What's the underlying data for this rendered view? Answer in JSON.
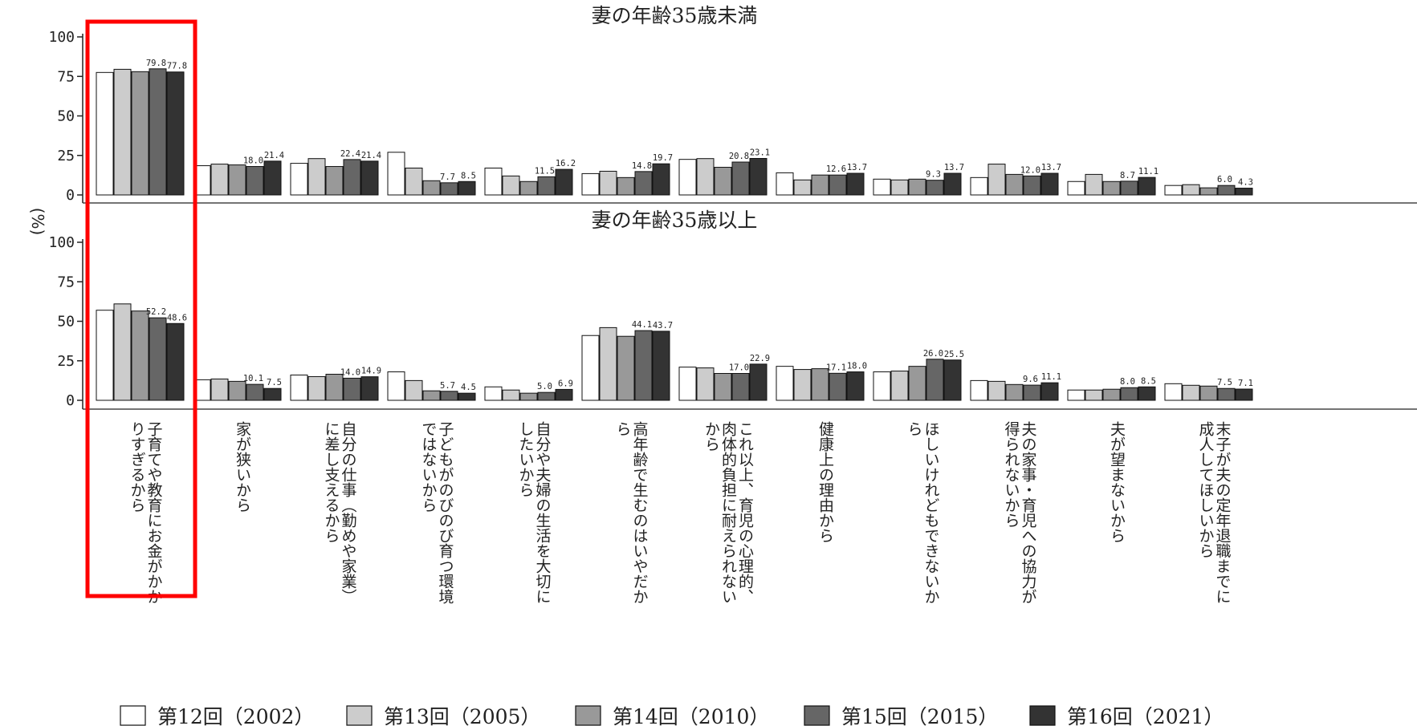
{
  "chart_data": {
    "type": "bar",
    "ylabel": "(%)",
    "ylim": [
      0,
      100
    ],
    "yticks": [
      0,
      25,
      50,
      75,
      100
    ],
    "series_names": [
      "第12回（2002）",
      "第13回（2005）",
      "第14回（2010）",
      "第15回（2015）",
      "第16回（2021）"
    ],
    "series_colors": [
      "#ffffff",
      "#cccccc",
      "#999999",
      "#666666",
      "#333333"
    ],
    "categories": [
      [
        "子育てや教育にお金がかか",
        "りすぎるから"
      ],
      [
        "家が狭いから"
      ],
      [
        "自分の仕事（勤めや家業）",
        "に差し支えるから"
      ],
      [
        "子どもがのびのび育つ環境",
        "ではないから"
      ],
      [
        "自分や夫婦の生活を大切に",
        "したいから"
      ],
      [
        "高年齢で生むのはいやだか",
        "ら"
      ],
      [
        "これ以上、育児の心理的、",
        "肉体的負担に耐えられない",
        "から"
      ],
      [
        "健康上の理由から"
      ],
      [
        "ほしいけれどもできないか",
        "ら"
      ],
      [
        "夫の家事・育児への協力が",
        "得られないから"
      ],
      [
        "夫が望まないから"
      ],
      [
        "末子が夫の定年退職までに",
        "成人してほしいから"
      ]
    ],
    "panels": [
      {
        "title": "妻の年齢35歳未満",
        "values": [
          [
            77.5,
            79.5,
            78.0,
            79.8,
            77.8
          ],
          [
            18.5,
            19.5,
            19.0,
            18.0,
            21.4
          ],
          [
            20.0,
            23.0,
            18.0,
            22.4,
            21.4
          ],
          [
            27.0,
            17.0,
            9.0,
            7.7,
            8.5
          ],
          [
            17.0,
            12.0,
            8.5,
            11.5,
            16.2
          ],
          [
            13.5,
            15.0,
            11.0,
            14.8,
            19.7
          ],
          [
            22.5,
            23.0,
            17.5,
            20.8,
            23.1
          ],
          [
            14.0,
            9.5,
            12.6,
            12.6,
            13.7
          ],
          [
            10.0,
            9.5,
            10.0,
            9.3,
            13.7
          ],
          [
            11.0,
            19.5,
            13.0,
            12.0,
            13.7
          ],
          [
            8.5,
            13.0,
            8.5,
            8.7,
            11.1
          ],
          [
            6.0,
            6.5,
            4.5,
            6.0,
            4.3
          ]
        ],
        "labels": [
          [
            "",
            "",
            "",
            "79.8",
            "77.8"
          ],
          [
            "",
            "",
            "",
            "18.0",
            "21.4"
          ],
          [
            "",
            "",
            "",
            "22.4",
            "21.4"
          ],
          [
            "",
            "",
            "",
            "7.7",
            "8.5"
          ],
          [
            "",
            "",
            "",
            "11.5",
            "16.2"
          ],
          [
            "",
            "",
            "",
            "14.8",
            "19.7"
          ],
          [
            "",
            "",
            "",
            "20.8",
            "23.1"
          ],
          [
            "",
            "",
            "",
            "12.6",
            "13.7"
          ],
          [
            "",
            "",
            "",
            "9.3",
            "13.7"
          ],
          [
            "",
            "",
            "",
            "12.0",
            "13.7"
          ],
          [
            "",
            "",
            "",
            "8.7",
            "11.1"
          ],
          [
            "",
            "",
            "",
            "6.0",
            "4.3"
          ]
        ]
      },
      {
        "title": "妻の年齢35歳以上",
        "values": [
          [
            57.0,
            61.0,
            56.5,
            52.2,
            48.6
          ],
          [
            13.0,
            13.5,
            12.0,
            10.1,
            7.5
          ],
          [
            16.0,
            15.0,
            16.5,
            14.0,
            14.9
          ],
          [
            18.0,
            12.5,
            6.0,
            5.7,
            4.5
          ],
          [
            8.5,
            6.5,
            4.5,
            5.0,
            6.9
          ],
          [
            41.0,
            46.0,
            40.5,
            44.1,
            43.7
          ],
          [
            21.0,
            20.5,
            17.0,
            17.0,
            22.9
          ],
          [
            21.5,
            19.5,
            20.0,
            17.1,
            18.0
          ],
          [
            18.0,
            18.5,
            21.5,
            26.0,
            25.5
          ],
          [
            12.5,
            12.0,
            10.0,
            9.6,
            11.1
          ],
          [
            6.5,
            6.5,
            7.0,
            8.0,
            8.5
          ],
          [
            10.5,
            9.5,
            9.0,
            7.5,
            7.1
          ]
        ],
        "labels": [
          [
            "",
            "",
            "",
            "52.2",
            "48.6"
          ],
          [
            "",
            "",
            "",
            "10.1",
            "7.5"
          ],
          [
            "",
            "",
            "",
            "14.0",
            "14.9"
          ],
          [
            "",
            "",
            "",
            "5.7",
            "4.5"
          ],
          [
            "",
            "",
            "",
            "5.0",
            "6.9"
          ],
          [
            "",
            "",
            "",
            "44.1",
            "43.7"
          ],
          [
            "",
            "",
            "",
            "17.0",
            "22.9"
          ],
          [
            "",
            "",
            "",
            "17.1",
            "18.0"
          ],
          [
            "",
            "",
            "",
            "26.0",
            "25.5"
          ],
          [
            "",
            "",
            "",
            "9.6",
            "11.1"
          ],
          [
            "",
            "",
            "",
            "8.0",
            "8.5"
          ],
          [
            "",
            "",
            "",
            "7.5",
            "7.1"
          ]
        ]
      }
    ],
    "highlight": {
      "category_index": 0,
      "color": "#ff0000"
    }
  }
}
